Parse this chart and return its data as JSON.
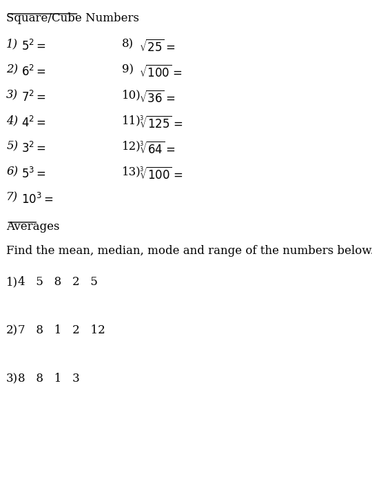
{
  "bg_color": "#ffffff",
  "title1": "Square/Cube Numbers",
  "title1_underline": true,
  "title2": "Averages",
  "title2_underline": true,
  "left_items": [
    {
      "num": "1)",
      "expr": "$5^2 =$"
    },
    {
      "num": "2)",
      "expr": "$6^2 =$"
    },
    {
      "num": "3)",
      "expr": "$7^2 =$"
    },
    {
      "num": "4)",
      "expr": "$4^2 =$"
    },
    {
      "num": "5)",
      "expr": "$3^2 =$"
    },
    {
      "num": "6)",
      "expr": "$5^3 =$"
    },
    {
      "num": "7)",
      "expr": "$10^3 =$"
    }
  ],
  "right_items": [
    {
      "num": "8)",
      "expr": "$\\sqrt{25}=$"
    },
    {
      "num": "9)",
      "expr": "$\\sqrt{100} =$"
    },
    {
      "num": "10)",
      "expr": "$\\sqrt{36} =$"
    },
    {
      "num": "11)",
      "expr": "$\\sqrt[3]{125} =$"
    },
    {
      "num": "12)",
      "expr": "$\\sqrt[3]{64} =$"
    },
    {
      "num": "13)",
      "expr": "$\\sqrt[3]{100} =$"
    }
  ],
  "averages_instruction": "Find the mean, median, mode and range of the numbers below.",
  "averages_problems": [
    {
      "num": "1)",
      "numbers": "4   5   8   2   5"
    },
    {
      "num": "2)",
      "numbers": "7   8   1   2   12"
    },
    {
      "num": "3)",
      "numbers": "8   8   1   3"
    }
  ],
  "font_size_title": 13,
  "font_size_body": 13,
  "font_size_math": 13
}
